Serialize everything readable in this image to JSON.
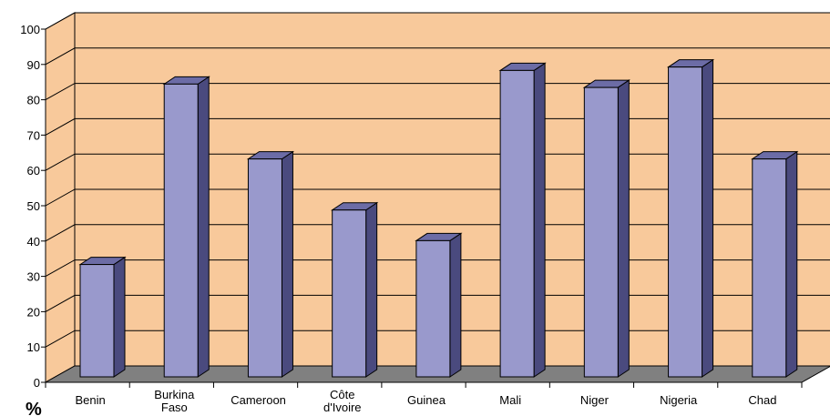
{
  "chart_data": {
    "type": "bar",
    "categories": [
      "Benin",
      "Burkina Faso",
      "Cameroon",
      "Côte d'Ivoire",
      "Guinea",
      "Mali",
      "Niger",
      "Nigeria",
      "Chad"
    ],
    "values": [
      33,
      86,
      64,
      49,
      40,
      90,
      85,
      91,
      64
    ],
    "ylabel": "%",
    "ylim": [
      0,
      100
    ],
    "yticks": [
      "0",
      "10",
      "20",
      "30",
      "40",
      "50",
      "60",
      "70",
      "80",
      "90",
      "100"
    ],
    "grid": true,
    "three_d": true,
    "colors": {
      "wall": "#F8C99B",
      "floor": "#808080",
      "bar_front": "#9999CC",
      "bar_side": "#4A4A7E",
      "bar_top": "#6C6CA6",
      "grid": "#000000"
    }
  }
}
